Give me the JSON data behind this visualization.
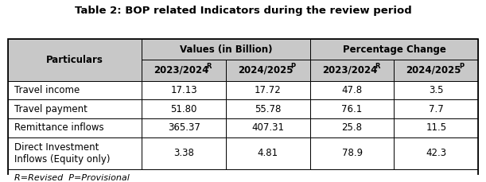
{
  "title": "Table 2: BOP related Indicators during the review period",
  "col_group_labels": [
    "Values (in Billion)",
    "Percentage Change"
  ],
  "sub_bases": [
    "2023/2024",
    "2024/2025",
    "2023/2024",
    "2024/2025"
  ],
  "sub_supers": [
    "R",
    "P",
    "R",
    "P"
  ],
  "particulars_header": "Particulars",
  "row_labels": [
    "Travel income",
    "Travel payment",
    "Remittance inflows",
    "Direct Investment\nInflows (Equity only)"
  ],
  "row_values": [
    [
      "17.13",
      "17.72",
      "47.8",
      "3.5"
    ],
    [
      "51.80",
      "55.78",
      "76.1",
      "7.7"
    ],
    [
      "365.37",
      "407.31",
      "25.8",
      "11.5"
    ],
    [
      "3.38",
      "4.81",
      "78.9",
      "42.3"
    ]
  ],
  "footnote": "R=Revised  P=Provisional",
  "header_bg": "#c8c8c8",
  "white": "#ffffff",
  "border_color": "#000000",
  "title_fontsize": 9.5,
  "header_fontsize": 8.5,
  "cell_fontsize": 8.5,
  "footnote_fontsize": 8.0
}
